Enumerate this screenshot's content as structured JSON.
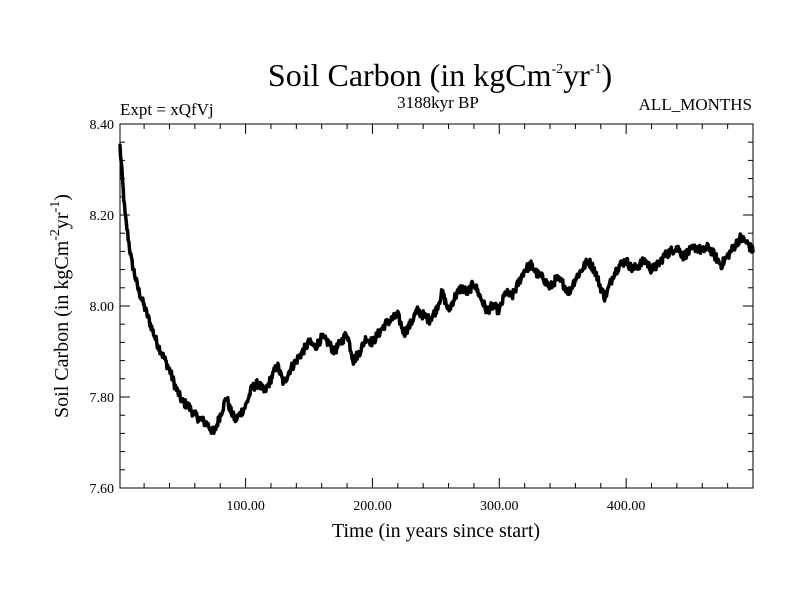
{
  "chart_data": {
    "type": "line",
    "title": {
      "main": "Soil Carbon (in kgCm",
      "exp1": "-2",
      "mid": "yr",
      "exp2": "-1",
      "close": ")"
    },
    "left_label": "Expt = xQfVj",
    "center_label": "3188kyr BP",
    "right_label": "ALL_MONTHS",
    "xlabel": "Time (in years since start)",
    "ylabel": {
      "main": "Soil Carbon (in kgCm",
      "exp1": "-2",
      "mid": "yr",
      "exp2": "-1",
      "close": ")"
    },
    "xlim": [
      1,
      500
    ],
    "ylim": [
      7.6,
      8.4
    ],
    "xticks": [
      100,
      200,
      300,
      400
    ],
    "xtick_labels": [
      "100.00",
      "200.00",
      "300.00",
      "400.00"
    ],
    "yticks": [
      7.6,
      7.8,
      8.0,
      8.2,
      8.4
    ],
    "ytick_labels": [
      "7.60",
      "7.80",
      "8.00",
      "8.20",
      "8.40"
    ],
    "series": [
      {
        "name": "Soil Carbon",
        "color": "#000000",
        "x": [
          1,
          5,
          10,
          15,
          20,
          25,
          30,
          35,
          40,
          45,
          50,
          55,
          60,
          65,
          70,
          75,
          80,
          85,
          88,
          92,
          95,
          100,
          105,
          110,
          115,
          120,
          125,
          130,
          135,
          140,
          145,
          150,
          155,
          160,
          165,
          170,
          175,
          180,
          185,
          190,
          195,
          200,
          205,
          210,
          215,
          220,
          225,
          230,
          235,
          240,
          245,
          250,
          255,
          260,
          265,
          270,
          275,
          280,
          285,
          290,
          295,
          300,
          305,
          310,
          315,
          320,
          325,
          330,
          335,
          340,
          345,
          350,
          355,
          360,
          365,
          370,
          375,
          380,
          383,
          385,
          390,
          395,
          400,
          405,
          410,
          415,
          420,
          425,
          430,
          435,
          440,
          445,
          450,
          455,
          460,
          465,
          470,
          475,
          480,
          485,
          490,
          495,
          500
        ],
        "y": [
          8.35,
          8.2,
          8.1,
          8.04,
          8.0,
          7.96,
          7.92,
          7.89,
          7.86,
          7.82,
          7.79,
          7.78,
          7.76,
          7.75,
          7.74,
          7.72,
          7.76,
          7.8,
          7.77,
          7.75,
          7.76,
          7.78,
          7.82,
          7.83,
          7.81,
          7.84,
          7.87,
          7.83,
          7.86,
          7.88,
          7.9,
          7.92,
          7.91,
          7.93,
          7.92,
          7.9,
          7.92,
          7.94,
          7.88,
          7.9,
          7.93,
          7.92,
          7.94,
          7.96,
          7.97,
          7.98,
          7.94,
          7.96,
          7.99,
          7.98,
          7.97,
          7.99,
          8.03,
          7.99,
          8.02,
          8.04,
          8.03,
          8.05,
          8.02,
          7.99,
          8.0,
          7.99,
          8.03,
          8.02,
          8.05,
          8.08,
          8.09,
          8.07,
          8.06,
          8.04,
          8.06,
          8.05,
          8.03,
          8.06,
          8.08,
          8.1,
          8.08,
          8.04,
          8.02,
          8.03,
          8.07,
          8.09,
          8.1,
          8.08,
          8.09,
          8.1,
          8.08,
          8.09,
          8.11,
          8.12,
          8.13,
          8.11,
          8.12,
          8.13,
          8.12,
          8.13,
          8.11,
          8.09,
          8.11,
          8.13,
          8.15,
          8.14,
          8.12
        ]
      }
    ]
  }
}
